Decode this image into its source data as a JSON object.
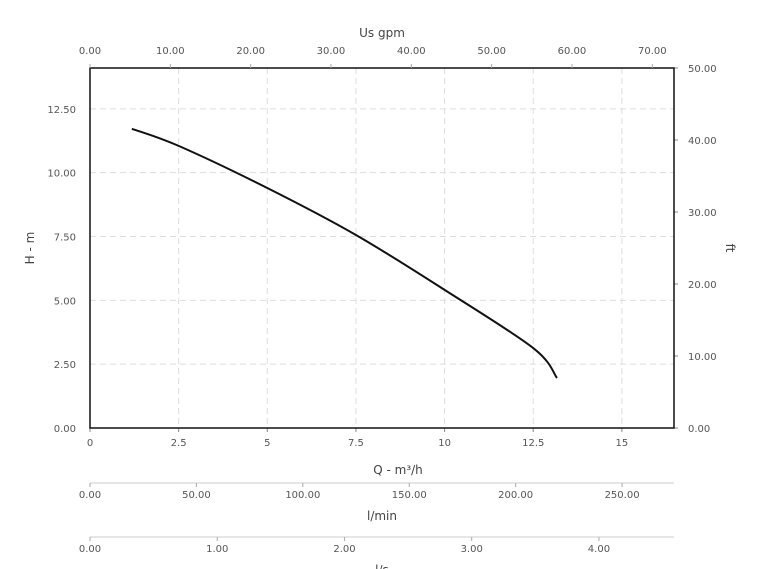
{
  "chart_data": {
    "type": "line",
    "x_label": "Q - m³/h",
    "y_label": "H - m",
    "y2_label": "ft",
    "xlim": [
      0,
      16.47
    ],
    "xticks": [
      0,
      2.5,
      5,
      7.5,
      10,
      12.5,
      15
    ],
    "ylim": [
      0,
      14.1
    ],
    "yticks": [
      {
        "value": 0,
        "label": "0.00"
      },
      {
        "value": 2.5,
        "label": "2.50"
      },
      {
        "value": 5,
        "label": "5.00"
      },
      {
        "value": 7.5,
        "label": "7.50"
      },
      {
        "value": 10,
        "label": "10.00"
      },
      {
        "value": 12.5,
        "label": "12.50"
      }
    ],
    "y2lim": [
      0,
      50
    ],
    "y2ticks": [
      {
        "value": 0,
        "label": "0.00"
      },
      {
        "value": 10,
        "label": "10.00"
      },
      {
        "value": 20,
        "label": "20.00"
      },
      {
        "value": 30,
        "label": "30.00"
      },
      {
        "value": 40,
        "label": "40.00"
      },
      {
        "value": 50,
        "label": "50.00"
      }
    ],
    "grid": true,
    "series": [
      {
        "color": "#111111",
        "x": [
          1.18,
          2.5,
          5,
          7.5,
          10,
          12.5,
          13.17
        ],
        "values": [
          11.72,
          11.05,
          9.4,
          7.56,
          5.41,
          3.13,
          1.96
        ]
      }
    ],
    "secondary_x_axes": [
      {
        "label": "Us gpm",
        "lim": [
          0,
          72.7
        ],
        "ticks": [
          {
            "value": 0,
            "label": "0.00"
          },
          {
            "value": 10,
            "label": "10.00"
          },
          {
            "value": 20,
            "label": "20.00"
          },
          {
            "value": 30,
            "label": "30.00"
          },
          {
            "value": 40,
            "label": "40.00"
          },
          {
            "value": 50,
            "label": "50.00"
          },
          {
            "value": 60,
            "label": "60.00"
          },
          {
            "value": 70,
            "label": "70.00"
          }
        ]
      },
      {
        "label": "l/min",
        "lim": [
          0,
          274.4
        ],
        "ticks": [
          {
            "value": 0,
            "label": "0.00"
          },
          {
            "value": 50,
            "label": "50.00"
          },
          {
            "value": 100,
            "label": "100.00"
          },
          {
            "value": 150,
            "label": "150.00"
          },
          {
            "value": 200,
            "label": "200.00"
          },
          {
            "value": 250,
            "label": "250.00"
          }
        ]
      },
      {
        "label": "l/s",
        "lim": [
          0,
          4.59
        ],
        "ticks": [
          {
            "value": 0,
            "label": "0.00"
          },
          {
            "value": 1,
            "label": "1.00"
          },
          {
            "value": 2,
            "label": "2.00"
          },
          {
            "value": 3,
            "label": "3.00"
          },
          {
            "value": 4,
            "label": "4.00"
          }
        ]
      }
    ]
  }
}
